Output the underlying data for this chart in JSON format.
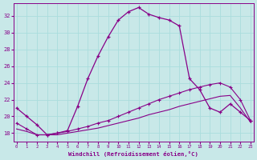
{
  "bg_color": "#c8e8e8",
  "line_color": "#880088",
  "grid_color": "#aadddd",
  "xlim": [
    0,
    23
  ],
  "ylim": [
    17,
    33.5
  ],
  "yticks": [
    18,
    20,
    22,
    24,
    26,
    28,
    30,
    32
  ],
  "xticks": [
    0,
    1,
    2,
    3,
    4,
    5,
    6,
    7,
    8,
    9,
    10,
    11,
    12,
    13,
    14,
    15,
    16,
    17,
    18,
    19,
    20,
    21,
    22,
    23
  ],
  "xlabel": "Windchill (Refroidissement éolien,°C)",
  "curve1_x": [
    0,
    1,
    2,
    3,
    4,
    5,
    6,
    7,
    8,
    9,
    10,
    11,
    12,
    13,
    14,
    15,
    16,
    17,
    18,
    19,
    20,
    21,
    22,
    23
  ],
  "curve1_y": [
    21.0,
    20.0,
    19.0,
    17.8,
    18.0,
    18.3,
    21.2,
    24.5,
    27.2,
    29.5,
    31.5,
    32.5,
    33.0,
    32.2,
    31.8,
    31.5,
    30.8,
    24.5,
    23.2,
    21.0,
    20.5,
    21.5,
    20.5,
    19.5
  ],
  "curve2_x": [
    0,
    1,
    2,
    3,
    4,
    5,
    6,
    7,
    8,
    9,
    10,
    11,
    12,
    13,
    14,
    15,
    16,
    17,
    18,
    19,
    20,
    21,
    22,
    23
  ],
  "curve2_y": [
    19.2,
    18.5,
    17.8,
    17.8,
    18.0,
    18.2,
    18.5,
    18.8,
    19.2,
    19.5,
    20.0,
    20.5,
    21.0,
    21.5,
    22.0,
    22.4,
    22.8,
    23.2,
    23.5,
    23.8,
    24.0,
    23.5,
    22.0,
    19.5
  ],
  "curve3_x": [
    0,
    1,
    2,
    3,
    4,
    5,
    6,
    7,
    8,
    9,
    10,
    11,
    12,
    13,
    14,
    15,
    16,
    17,
    18,
    19,
    20,
    21,
    22,
    23
  ],
  "curve3_y": [
    18.5,
    18.2,
    17.8,
    17.8,
    17.8,
    18.0,
    18.2,
    18.4,
    18.6,
    18.9,
    19.2,
    19.5,
    19.8,
    20.2,
    20.5,
    20.8,
    21.2,
    21.5,
    21.8,
    22.1,
    22.4,
    22.5,
    21.0,
    19.3
  ]
}
